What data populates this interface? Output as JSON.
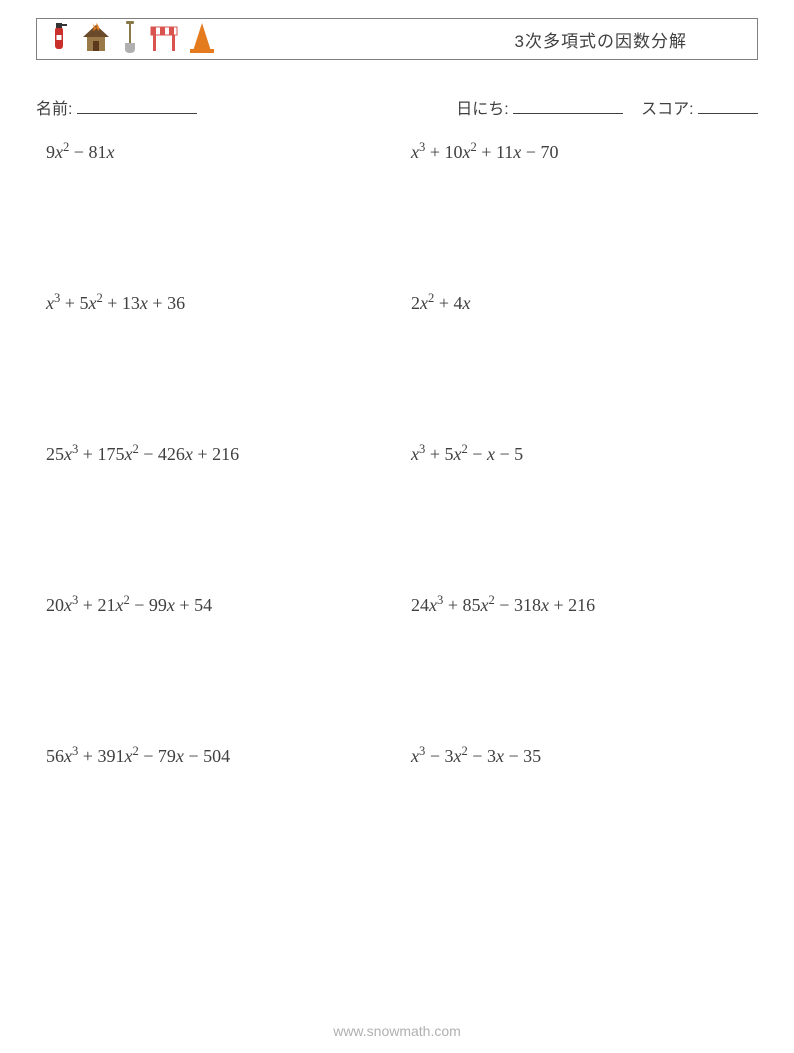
{
  "header": {
    "title": "3次多項式の因数分解",
    "icons": [
      {
        "name": "fire-extinguisher",
        "color": "#c9302c"
      },
      {
        "name": "house-fire",
        "color": "#6b4a2a"
      },
      {
        "name": "shovel",
        "color": "#8a7a4a"
      },
      {
        "name": "barrier",
        "color": "#d9534f"
      },
      {
        "name": "traffic-cone",
        "color": "#e57b1f"
      }
    ]
  },
  "info": {
    "name_label": "名前:",
    "date_label": "日にち:",
    "score_label": "スコア:",
    "name_underline_width": 120,
    "date_underline_width": 110,
    "score_underline_width": 60
  },
  "problems": [
    [
      {
        "terms": [
          {
            "c": "9",
            "v": "x",
            "e": "2"
          },
          {
            "op": "−",
            "c": "81",
            "v": "x"
          }
        ]
      },
      {
        "terms": [
          {
            "v": "x",
            "e": "3"
          },
          {
            "op": "+",
            "c": "10",
            "v": "x",
            "e": "2"
          },
          {
            "op": "+",
            "c": "11",
            "v": "x"
          },
          {
            "op": "−",
            "c": "70"
          }
        ]
      }
    ],
    [
      {
        "terms": [
          {
            "v": "x",
            "e": "3"
          },
          {
            "op": "+",
            "c": "5",
            "v": "x",
            "e": "2"
          },
          {
            "op": "+",
            "c": "13",
            "v": "x"
          },
          {
            "op": "+",
            "c": "36"
          }
        ]
      },
      {
        "terms": [
          {
            "c": "2",
            "v": "x",
            "e": "2"
          },
          {
            "op": "+",
            "c": "4",
            "v": "x"
          }
        ]
      }
    ],
    [
      {
        "terms": [
          {
            "c": "25",
            "v": "x",
            "e": "3"
          },
          {
            "op": "+",
            "c": "175",
            "v": "x",
            "e": "2"
          },
          {
            "op": "−",
            "c": "426",
            "v": "x"
          },
          {
            "op": "+",
            "c": "216"
          }
        ]
      },
      {
        "terms": [
          {
            "v": "x",
            "e": "3"
          },
          {
            "op": "+",
            "c": "5",
            "v": "x",
            "e": "2"
          },
          {
            "op": "−",
            "v": "x"
          },
          {
            "op": "−",
            "c": "5"
          }
        ]
      }
    ],
    [
      {
        "terms": [
          {
            "c": "20",
            "v": "x",
            "e": "3"
          },
          {
            "op": "+",
            "c": "21",
            "v": "x",
            "e": "2"
          },
          {
            "op": "−",
            "c": "99",
            "v": "x"
          },
          {
            "op": "+",
            "c": "54"
          }
        ]
      },
      {
        "terms": [
          {
            "c": "24",
            "v": "x",
            "e": "3"
          },
          {
            "op": "+",
            "c": "85",
            "v": "x",
            "e": "2"
          },
          {
            "op": "−",
            "c": "318",
            "v": "x"
          },
          {
            "op": "+",
            "c": "216"
          }
        ]
      }
    ],
    [
      {
        "terms": [
          {
            "c": "56",
            "v": "x",
            "e": "3"
          },
          {
            "op": "+",
            "c": "391",
            "v": "x",
            "e": "2"
          },
          {
            "op": "−",
            "c": "79",
            "v": "x"
          },
          {
            "op": "−",
            "c": "504"
          }
        ]
      },
      {
        "terms": [
          {
            "v": "x",
            "e": "3"
          },
          {
            "op": "−",
            "c": "3",
            "v": "x",
            "e": "2"
          },
          {
            "op": "−",
            "c": "3",
            "v": "x"
          },
          {
            "op": "−",
            "c": "35"
          }
        ]
      }
    ]
  ],
  "footer": "www.snowmath.com",
  "colors": {
    "text": "#404040",
    "border": "#808080",
    "footer": "#b0b0b0",
    "background": "#ffffff"
  }
}
